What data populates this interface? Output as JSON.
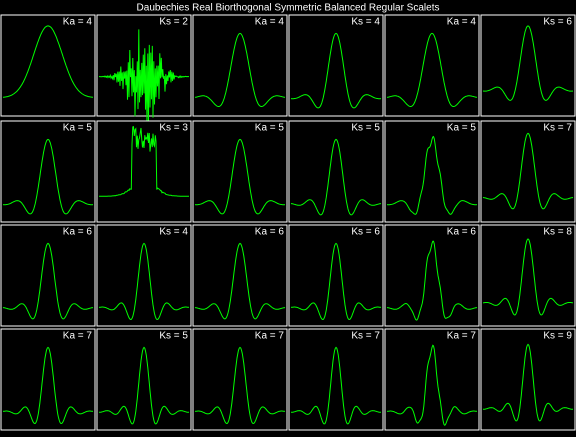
{
  "title": "Daubechies Real Biorthogonal Symmetric Balanced Regular Scalets",
  "panels": [
    {
      "label": "Ka = 4"
    },
    {
      "label": "Ks = 2"
    },
    {
      "label": "Ka = 4"
    },
    {
      "label": "Ks = 4"
    },
    {
      "label": "Ka = 4"
    },
    {
      "label": "Ks = 6"
    },
    {
      "label": "Ka = 5"
    },
    {
      "label": "Ks = 3"
    },
    {
      "label": "Ka = 5"
    },
    {
      "label": "Ks = 5"
    },
    {
      "label": "Ka = 5"
    },
    {
      "label": "Ks = 7"
    },
    {
      "label": "Ka = 6"
    },
    {
      "label": "Ks = 4"
    },
    {
      "label": "Ka = 6"
    },
    {
      "label": "Ks = 6"
    },
    {
      "label": "Ka = 6"
    },
    {
      "label": "Ks = 8"
    },
    {
      "label": "Ka = 7"
    },
    {
      "label": "Ks = 5"
    },
    {
      "label": "Ka = 7"
    },
    {
      "label": "Ks = 7"
    },
    {
      "label": "Ka = 7"
    },
    {
      "label": "Ks = 9"
    }
  ]
}
